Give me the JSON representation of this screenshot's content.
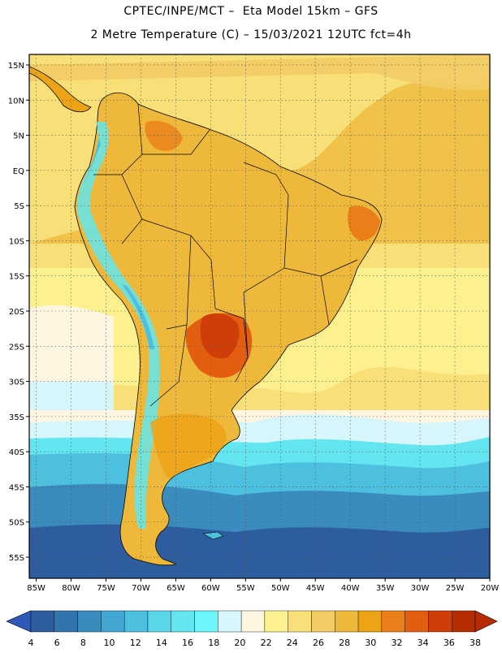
{
  "title": {
    "line1": "CPTEC/INPE/MCT –  Eta Model 15km – GFS",
    "line2": "2 Metre Temperature (C) – 15/03/2021 12UTC fct=4h"
  },
  "map": {
    "lat_labels": [
      "15N",
      "10N",
      "5N",
      "EQ",
      "5S",
      "10S",
      "15S",
      "20S",
      "25S",
      "30S",
      "35S",
      "40S",
      "45S",
      "50S",
      "55S"
    ],
    "lat_values": [
      15,
      10,
      5,
      0,
      -5,
      -10,
      -15,
      -20,
      -25,
      -30,
      -35,
      -40,
      -45,
      -50,
      -55
    ],
    "lon_labels": [
      "85W",
      "80W",
      "75W",
      "70W",
      "65W",
      "60W",
      "55W",
      "50W",
      "45W",
      "40W",
      "35W",
      "30W",
      "25W",
      "20W"
    ],
    "lon_values": [
      -85,
      -80,
      -75,
      -70,
      -65,
      -60,
      -55,
      -50,
      -45,
      -40,
      -35,
      -30,
      -25,
      -20
    ],
    "extent": {
      "lon_min": -86,
      "lon_max": -20,
      "lat_min": -58,
      "lat_max": 16.5
    }
  },
  "colorbar": {
    "labels": [
      "4",
      "6",
      "8",
      "10",
      "12",
      "14",
      "16",
      "18",
      "20",
      "22",
      "24",
      "26",
      "28",
      "30",
      "32",
      "34",
      "36",
      "38"
    ],
    "colors": [
      "#2d5d9f",
      "#3274ad",
      "#3a8cbf",
      "#43a7d3",
      "#4dbfdf",
      "#5ad6e8",
      "#63e6ef",
      "#6cf6fa",
      "#d7f6fb",
      "#fef6e1",
      "#fdf08e",
      "#f8df78",
      "#f2cc64",
      "#eeb83a",
      "#eda316",
      "#ea7f19",
      "#e35e11",
      "#cf3d08",
      "#b62d02"
    ],
    "low_color": "#2f59b8",
    "high_color": "#b62d02"
  }
}
